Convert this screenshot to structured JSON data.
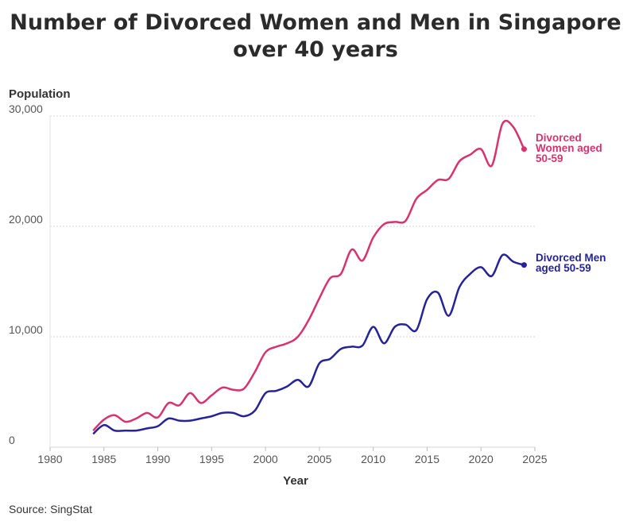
{
  "chart_data": {
    "type": "line",
    "title": "Number of Divorced Women and Men in Singapore over 40 years",
    "xlabel": "Year",
    "ylabel": "Population",
    "source": "Source: SingStat",
    "xlim": [
      1980,
      2025
    ],
    "ylim": [
      0,
      30000
    ],
    "x_ticks": [
      1980,
      1985,
      1990,
      1995,
      2000,
      2005,
      2010,
      2015,
      2020,
      2025
    ],
    "y_ticks": [
      0,
      10000,
      20000,
      30000
    ],
    "y_tick_labels": [
      "0",
      "10,000",
      "20,000",
      "30,000"
    ],
    "grid": "horizontal dashed",
    "legend": "direct labels at line ends",
    "x": [
      1984,
      1985,
      1986,
      1987,
      1988,
      1989,
      1990,
      1991,
      1992,
      1993,
      1994,
      1995,
      1996,
      1997,
      1998,
      1999,
      2000,
      2001,
      2002,
      2003,
      2004,
      2005,
      2006,
      2007,
      2008,
      2009,
      2010,
      2011,
      2012,
      2013,
      2014,
      2015,
      2016,
      2017,
      2018,
      2019,
      2020,
      2021,
      2022,
      2023,
      2024
    ],
    "series": [
      {
        "name": "Divorced Women aged 50-59",
        "label_lines": [
          "Divorced",
          "Women aged",
          "50-59"
        ],
        "color": "#d7336e",
        "values": [
          1500,
          2500,
          2900,
          2300,
          2600,
          3100,
          2700,
          4000,
          3800,
          4900,
          4000,
          4700,
          5400,
          5200,
          5300,
          6800,
          8600,
          9100,
          9400,
          10000,
          11500,
          13500,
          15300,
          15700,
          17900,
          16900,
          19000,
          20200,
          20400,
          20500,
          22500,
          23300,
          24200,
          24300,
          25900,
          26500,
          27000,
          25500,
          29300,
          29000,
          27000
        ]
      },
      {
        "name": "Divorced Men aged 50-59",
        "label_lines": [
          "Divorced Men",
          "aged 50-59"
        ],
        "color": "#262396",
        "values": [
          1200,
          2000,
          1500,
          1500,
          1500,
          1700,
          1900,
          2600,
          2400,
          2400,
          2600,
          2800,
          3100,
          3100,
          2800,
          3300,
          4900,
          5100,
          5500,
          6100,
          5500,
          7600,
          8000,
          8900,
          9100,
          9200,
          10900,
          9400,
          10900,
          11100,
          10600,
          13400,
          14000,
          11900,
          14500,
          15700,
          16300,
          15500,
          17400,
          16800,
          16500
        ]
      }
    ]
  }
}
